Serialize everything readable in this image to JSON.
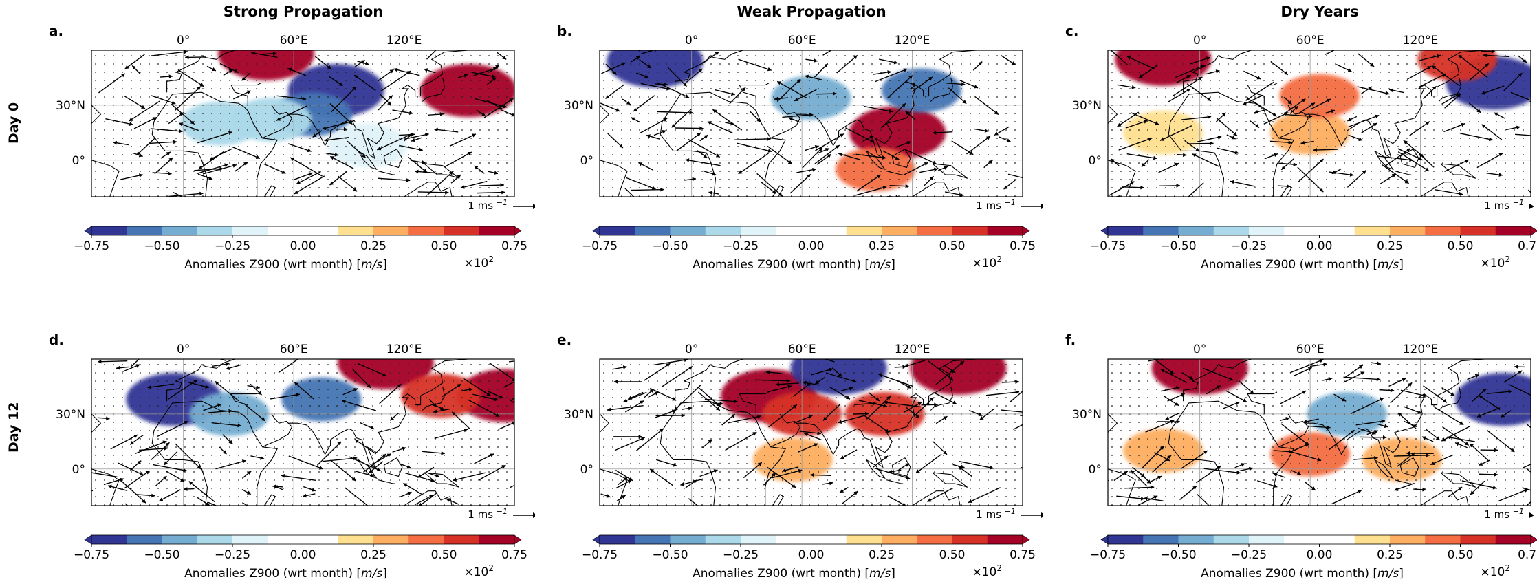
{
  "figure": {
    "columns": [
      "Strong Propagation",
      "Weak Propagation",
      "Dry Years"
    ],
    "rows": [
      "Day 0",
      "Day 12"
    ],
    "lon_ticks": [
      "0°",
      "60°E",
      "120°E"
    ],
    "lat_ticks": [
      "30°N",
      "0°"
    ],
    "vector_key_label": "1 ms",
    "vector_key_exp": "−1",
    "colorbar_ticks": [
      "−0.75",
      "−0.50",
      "−0.25",
      "0.00",
      "0.25",
      "0.50",
      "0.75"
    ],
    "colorbar_label": "Anomalies Z900 (wrt month) [",
    "colorbar_unit": "m/s",
    "colorbar_close": "]",
    "colorbar_scale": "×10",
    "colorbar_scale_exp": "2",
    "colors": {
      "bins": [
        "#313695",
        "#4575b4",
        "#74add1",
        "#abd9e9",
        "#e0f3f8",
        "#ffffff",
        "#ffffff",
        "#fee090",
        "#fdae61",
        "#f46d43",
        "#d73027",
        "#a50026"
      ],
      "ext_low": "#313695",
      "ext_high": "#a50026"
    }
  },
  "chart_data": [
    {
      "panel": "a.",
      "type": "heatmap",
      "column": "Strong Propagation",
      "row": "Day 0",
      "xlim": [
        -50,
        180
      ],
      "ylim": [
        -20,
        60
      ],
      "anomalies": [
        {
          "lon": 83,
          "lat": 38,
          "value": -0.72
        },
        {
          "lon": 70,
          "lat": 25,
          "value": -0.6
        },
        {
          "lon": 48,
          "lat": 22,
          "value": -0.32
        },
        {
          "lon": 20,
          "lat": 20,
          "value": -0.28
        },
        {
          "lon": 155,
          "lat": 38,
          "value": 0.78
        },
        {
          "lon": 45,
          "lat": 58,
          "value": 0.78
        },
        {
          "lon": 100,
          "lat": 8,
          "value": -0.2
        }
      ]
    },
    {
      "panel": "b.",
      "type": "heatmap",
      "column": "Weak Propagation",
      "row": "Day 0",
      "xlim": [
        -50,
        180
      ],
      "ylim": [
        -20,
        60
      ],
      "anomalies": [
        {
          "lon": -20,
          "lat": 54,
          "value": -0.78
        },
        {
          "lon": 112,
          "lat": 15,
          "value": 0.78
        },
        {
          "lon": 100,
          "lat": -5,
          "value": 0.4
        },
        {
          "lon": 65,
          "lat": 34,
          "value": -0.45
        },
        {
          "lon": 125,
          "lat": 38,
          "value": -0.6
        }
      ]
    },
    {
      "panel": "c.",
      "type": "heatmap",
      "column": "Dry Years",
      "row": "Day 0",
      "xlim": [
        -50,
        180
      ],
      "ylim": [
        -20,
        60
      ],
      "anomalies": [
        {
          "lon": 160,
          "lat": 42,
          "value": -0.72
        },
        {
          "lon": -20,
          "lat": 55,
          "value": 0.78
        },
        {
          "lon": 60,
          "lat": 15,
          "value": 0.25
        },
        {
          "lon": 65,
          "lat": 35,
          "value": 0.45
        },
        {
          "lon": -20,
          "lat": 15,
          "value": 0.22
        },
        {
          "lon": 140,
          "lat": 55,
          "value": 0.55
        }
      ]
    },
    {
      "panel": "d.",
      "type": "heatmap",
      "column": "Strong Propagation",
      "row": "Day 12",
      "xlim": [
        -50,
        180
      ],
      "ylim": [
        -20,
        60
      ],
      "anomalies": [
        {
          "lon": -5,
          "lat": 38,
          "value": -0.7
        },
        {
          "lon": 25,
          "lat": 30,
          "value": -0.45
        },
        {
          "lon": 75,
          "lat": 38,
          "value": -0.55
        },
        {
          "lon": 175,
          "lat": 40,
          "value": 0.78
        },
        {
          "lon": 110,
          "lat": 58,
          "value": 0.75
        },
        {
          "lon": 140,
          "lat": 40,
          "value": 0.5
        }
      ]
    },
    {
      "panel": "e.",
      "type": "heatmap",
      "column": "Weak Propagation",
      "row": "Day 12",
      "xlim": [
        -50,
        180
      ],
      "ylim": [
        -20,
        60
      ],
      "anomalies": [
        {
          "lon": 42,
          "lat": 40,
          "value": 0.72
        },
        {
          "lon": 60,
          "lat": 30,
          "value": 0.6
        },
        {
          "lon": 55,
          "lat": 5,
          "value": 0.3
        },
        {
          "lon": 80,
          "lat": 55,
          "value": -0.75
        },
        {
          "lon": 145,
          "lat": 55,
          "value": 0.78
        },
        {
          "lon": 105,
          "lat": 30,
          "value": 0.6
        }
      ]
    },
    {
      "panel": "f.",
      "type": "heatmap",
      "column": "Dry Years",
      "row": "Day 12",
      "xlim": [
        -50,
        180
      ],
      "ylim": [
        -20,
        60
      ],
      "anomalies": [
        {
          "lon": 0,
          "lat": 55,
          "value": 0.78
        },
        {
          "lon": 165,
          "lat": 38,
          "value": -0.75
        },
        {
          "lon": 60,
          "lat": 8,
          "value": 0.4
        },
        {
          "lon": -20,
          "lat": 10,
          "value": 0.25
        },
        {
          "lon": 110,
          "lat": 5,
          "value": 0.3
        },
        {
          "lon": 80,
          "lat": 30,
          "value": -0.45
        }
      ]
    }
  ]
}
